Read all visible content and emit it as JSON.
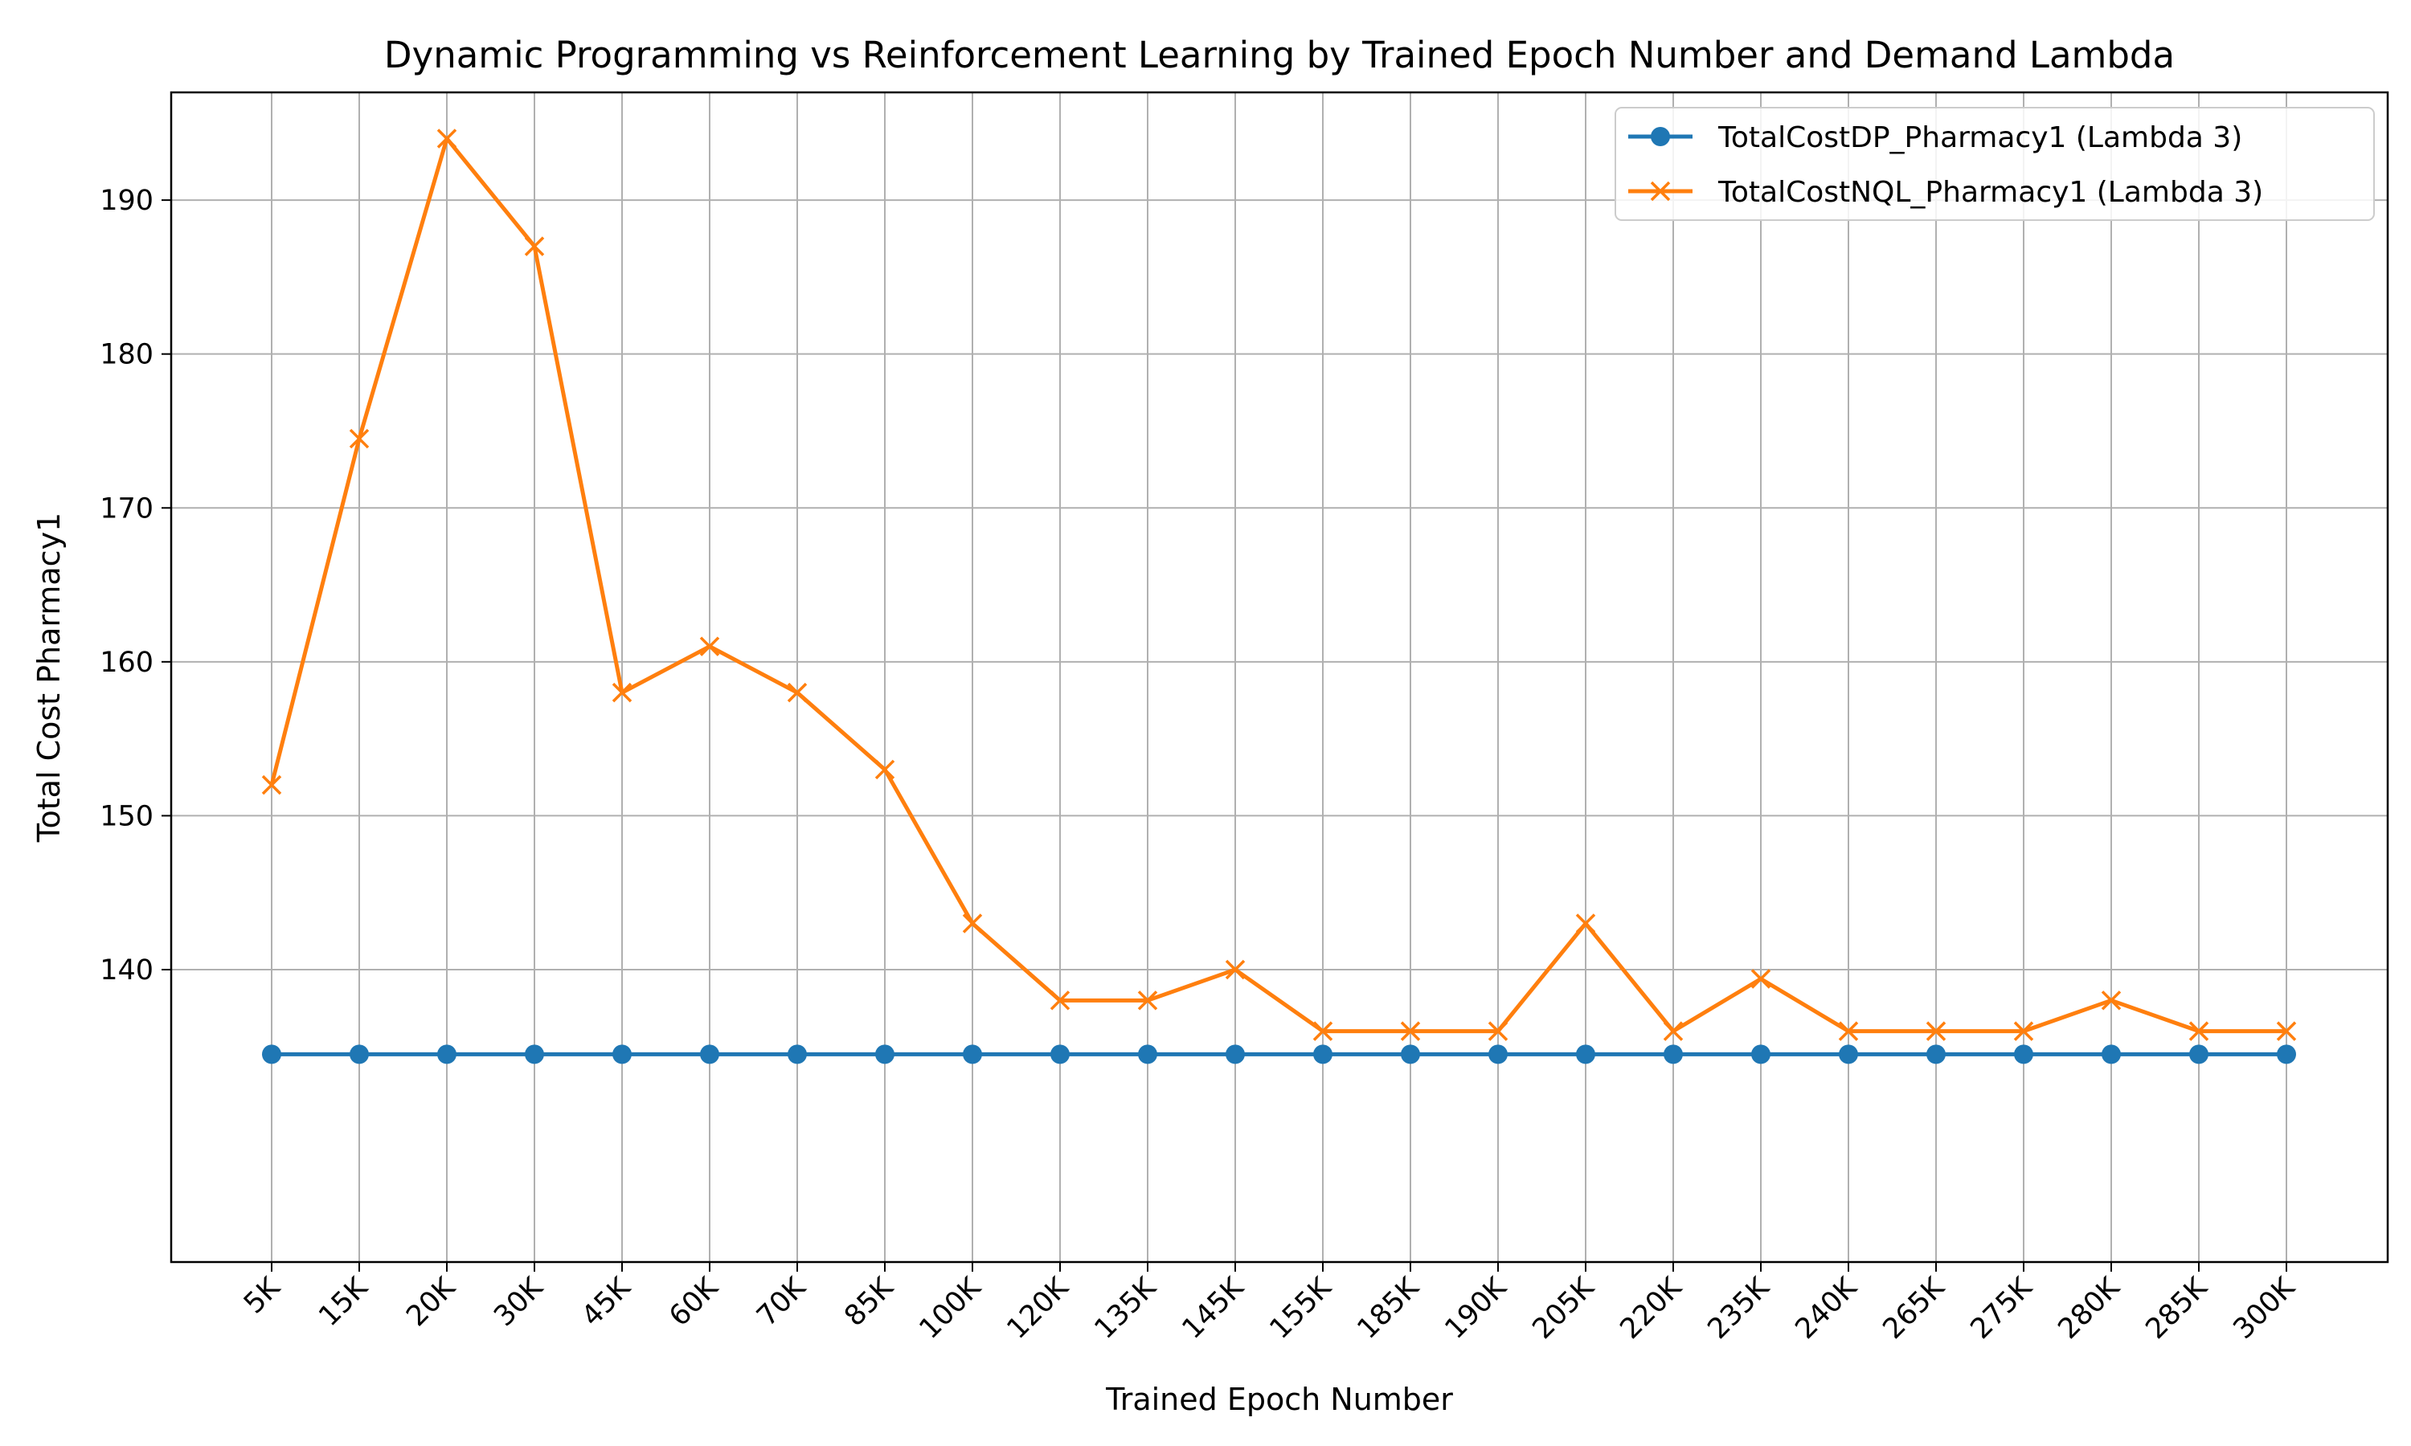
{
  "chart_data": {
    "type": "line",
    "title": "Dynamic Programming vs Reinforcement Learning by Trained Epoch Number and Demand Lambda",
    "xlabel": "Trained Epoch Number",
    "ylabel": "Total Cost Pharmacy1",
    "categories": [
      "5K",
      "15K",
      "20K",
      "30K",
      "45K",
      "60K",
      "70K",
      "85K",
      "100K",
      "120K",
      "135K",
      "145K",
      "155K",
      "185K",
      "190K",
      "205K",
      "220K",
      "235K",
      "240K",
      "265K",
      "275K",
      "280K",
      "285K",
      "300K"
    ],
    "ylim": [
      121,
      197
    ],
    "yticks": [
      140,
      150,
      160,
      170,
      180,
      190
    ],
    "grid": true,
    "legend_position": "upper right",
    "series": [
      {
        "name": "TotalCostDP_Pharmacy1 (Lambda 3)",
        "color": "#1f77b4",
        "marker": "circle",
        "values": [
          134.5,
          134.5,
          134.5,
          134.5,
          134.5,
          134.5,
          134.5,
          134.5,
          134.5,
          134.5,
          134.5,
          134.5,
          134.5,
          134.5,
          134.5,
          134.5,
          134.5,
          134.5,
          134.5,
          134.5,
          134.5,
          134.5,
          134.5,
          134.5
        ]
      },
      {
        "name": "TotalCostNQL_Pharmacy1 (Lambda 3)",
        "color": "#ff7f0e",
        "marker": "x",
        "values": [
          152,
          174.5,
          194,
          187,
          158,
          161,
          158,
          153,
          143,
          138,
          138,
          140,
          136,
          136,
          136,
          143,
          136,
          139.4,
          136,
          136,
          136,
          138,
          136,
          136
        ]
      }
    ]
  }
}
